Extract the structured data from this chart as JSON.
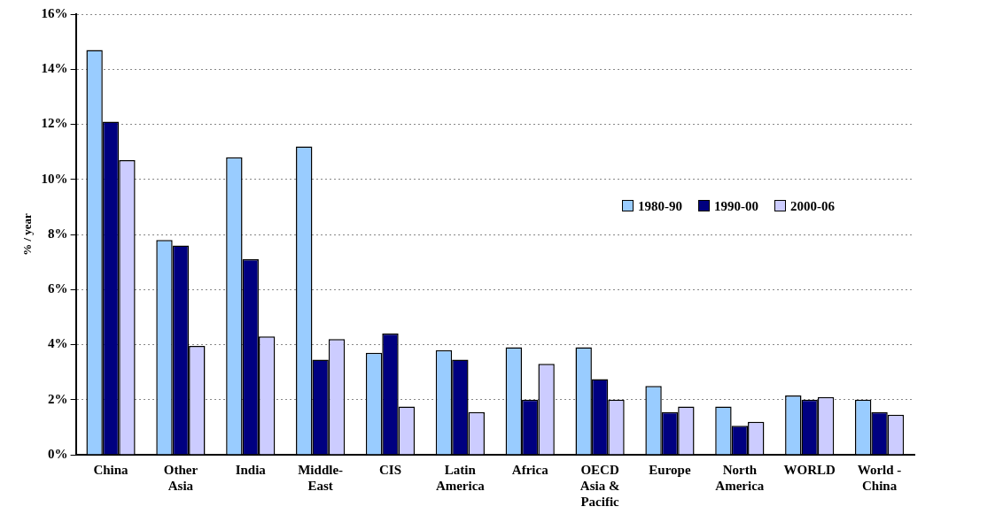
{
  "chart_data": {
    "type": "bar",
    "ylabel": "% / year",
    "categories": [
      "China",
      "Other\nAsia",
      "India",
      "Middle-\nEast",
      "CIS",
      "Latin\nAmerica",
      "Africa",
      "OECD\nAsia &\nPacific",
      "Europe",
      "North\nAmerica",
      "WORLD",
      "World -\nChina"
    ],
    "series": [
      {
        "name": "1980-90",
        "color": "#99ccff",
        "values": [
          14.7,
          7.8,
          10.8,
          11.2,
          3.7,
          3.8,
          3.9,
          3.9,
          2.5,
          1.75,
          2.15,
          2.0
        ]
      },
      {
        "name": "1990-00",
        "color": "#000080",
        "values": [
          12.1,
          7.6,
          7.1,
          3.45,
          4.4,
          3.45,
          2.0,
          2.75,
          1.55,
          1.05,
          2.0,
          1.55
        ]
      },
      {
        "name": "2000-06",
        "color": "#ccccff",
        "values": [
          10.7,
          3.95,
          4.3,
          4.2,
          1.75,
          1.55,
          3.3,
          2.0,
          1.75,
          1.2,
          2.1,
          1.45
        ]
      }
    ],
    "ylim": [
      0,
      16
    ],
    "yticks": [
      {
        "value": 0,
        "label": "0%"
      },
      {
        "value": 2,
        "label": "2%"
      },
      {
        "value": 4,
        "label": "4%"
      },
      {
        "value": 6,
        "label": "6%"
      },
      {
        "value": 8,
        "label": "8%"
      },
      {
        "value": 10,
        "label": "10%"
      },
      {
        "value": 12,
        "label": "12%"
      },
      {
        "value": 14,
        "label": "14%"
      },
      {
        "value": 16,
        "label": "16%"
      }
    ],
    "grid": "y",
    "legend": "top right"
  }
}
